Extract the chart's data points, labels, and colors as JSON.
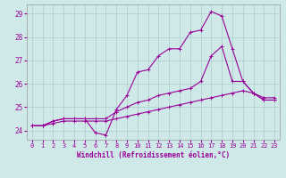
{
  "xlabel": "Windchill (Refroidissement éolien,°C)",
  "background_color": "#cfe8e8",
  "grid_color": "#aacccc",
  "line_color": "#990099",
  "xlim": [
    -0.5,
    23.5
  ],
  "ylim": [
    23.6,
    29.4
  ],
  "xticks": [
    0,
    1,
    2,
    3,
    4,
    5,
    6,
    7,
    8,
    9,
    10,
    11,
    12,
    13,
    14,
    15,
    16,
    17,
    18,
    19,
    20,
    21,
    22,
    23
  ],
  "yticks": [
    24,
    25,
    26,
    27,
    28,
    29
  ],
  "series": [
    [
      24.2,
      24.2,
      24.4,
      24.5,
      24.5,
      24.5,
      23.9,
      23.8,
      24.9,
      25.5,
      26.5,
      26.6,
      27.2,
      27.5,
      27.5,
      28.2,
      28.3,
      29.1,
      28.9,
      27.5,
      26.1,
      25.6,
      25.3,
      25.3
    ],
    [
      24.2,
      24.2,
      24.4,
      24.5,
      24.5,
      24.5,
      24.5,
      24.5,
      24.8,
      25.0,
      25.2,
      25.3,
      25.5,
      25.6,
      25.7,
      25.8,
      26.1,
      27.2,
      27.6,
      26.1,
      26.1,
      25.6,
      25.3,
      25.3
    ],
    [
      24.2,
      24.2,
      24.3,
      24.4,
      24.4,
      24.4,
      24.4,
      24.4,
      24.5,
      24.6,
      24.7,
      24.8,
      24.9,
      25.0,
      25.1,
      25.2,
      25.3,
      25.4,
      25.5,
      25.6,
      25.7,
      25.6,
      25.4,
      25.4
    ]
  ],
  "xlabel_fontsize": 5.5,
  "tick_fontsize": 5.0,
  "ytick_fontsize": 5.5
}
